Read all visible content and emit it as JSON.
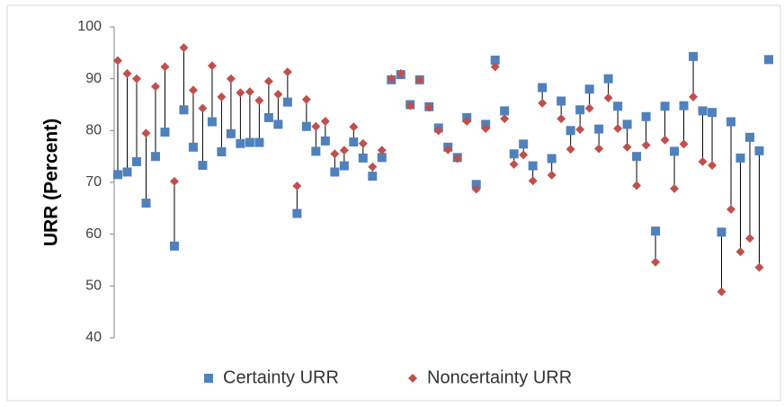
{
  "chart_data": {
    "type": "scatter",
    "y_label": "URR (Percent)",
    "categories": [
      null,
      null,
      null,
      null,
      null,
      null,
      null,
      null,
      null,
      null,
      null,
      null,
      null,
      null,
      null,
      null,
      null,
      null,
      null,
      null,
      null,
      null,
      null,
      null,
      null,
      null,
      null,
      null,
      null,
      null,
      null,
      null,
      null,
      null,
      null,
      null,
      null,
      null,
      null,
      null,
      null,
      null,
      null,
      null,
      null,
      null,
      null,
      null,
      null,
      null,
      null,
      null,
      null,
      null,
      null,
      null,
      null,
      null,
      null,
      null,
      null,
      null,
      null,
      null,
      null,
      null,
      null,
      null,
      null,
      null
    ],
    "series": [
      {
        "name": "Certainty URR",
        "color": "#4f81bd",
        "marker": "square",
        "values": [
          71.5,
          72,
          74,
          66,
          75,
          79.7,
          57.7,
          84,
          76.8,
          73.3,
          81.7,
          75.9,
          79.4,
          77.5,
          77.7,
          77.7,
          82.5,
          81.2,
          85.5,
          64,
          80.8,
          76,
          78,
          72,
          73.2,
          77.8,
          74.7,
          71.2,
          74.8,
          89.8,
          90.8,
          85,
          89.8,
          84.6,
          80.5,
          76.8,
          74.8,
          82.5,
          69.6,
          81.2,
          93.6,
          83.8,
          75.5,
          77.4,
          73.2,
          88.3,
          74.6,
          85.7,
          80,
          84,
          88,
          80.3,
          90,
          84.7,
          81.2,
          75,
          82.7,
          60.6,
          84.7,
          76,
          84.8,
          94.3,
          83.8,
          83.5,
          60.4,
          81.7,
          74.7,
          78.7,
          76.1,
          93.7
        ]
      },
      {
        "name": "Noncertainty URR",
        "color": "#c0504d",
        "marker": "diamond",
        "values": [
          93.5,
          91,
          90,
          79.5,
          88.5,
          92.3,
          70.2,
          96,
          87.8,
          84.3,
          92.5,
          86.5,
          90,
          87.3,
          87.5,
          85.8,
          89.5,
          87,
          91.3,
          69.3,
          86,
          80.8,
          81.8,
          75.5,
          76.2,
          80.7,
          77.5,
          73,
          76.2,
          90,
          91,
          84.8,
          89.8,
          84.5,
          80,
          76.3,
          74.6,
          81.8,
          68.7,
          80.4,
          92.3,
          82.3,
          73.5,
          75.3,
          70.3,
          85.3,
          71.4,
          82.3,
          76.4,
          80.2,
          84.3,
          76.5,
          86.3,
          80.4,
          76.8,
          69.4,
          77.2,
          54.6,
          78.2,
          68.8,
          77.4,
          86.5,
          74,
          73.3,
          48.9,
          64.8,
          56.6,
          59.2,
          53.6,
          null
        ]
      }
    ],
    "ylim": [
      40,
      100
    ],
    "yticks": [
      40,
      50,
      60,
      70,
      80,
      90,
      100
    ],
    "drop_lines": true
  }
}
